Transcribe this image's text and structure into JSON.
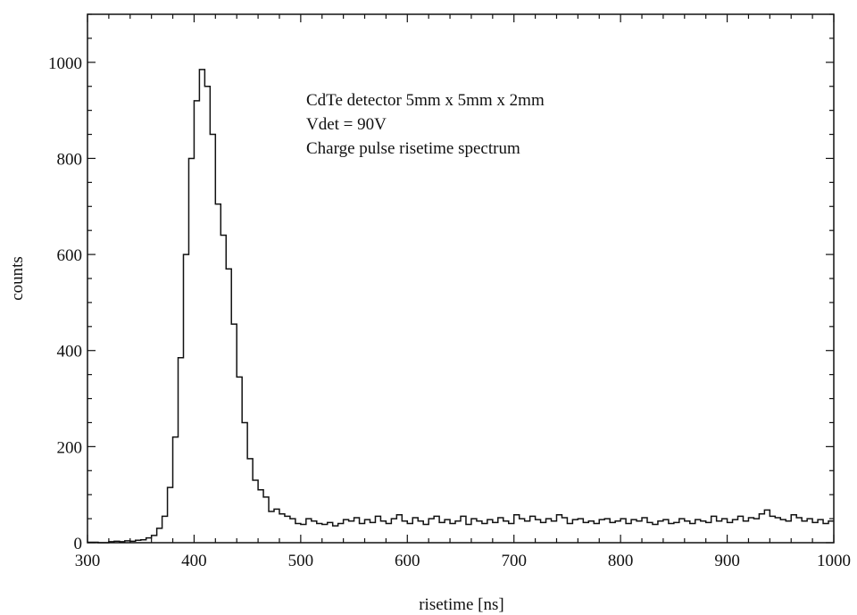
{
  "chart_data": {
    "type": "line",
    "step": true,
    "xlabel": "risetime [ns]",
    "ylabel": "counts",
    "xlim": [
      300,
      1000
    ],
    "ylim": [
      0,
      1100
    ],
    "xticks": [
      300,
      400,
      500,
      600,
      700,
      800,
      900,
      1000
    ],
    "yticks": [
      0,
      200,
      400,
      600,
      800,
      1000
    ],
    "grid": false,
    "annotations": [
      "CdTe detector 5mm x 5mm x 2mm",
      "Vdet = 90V",
      "Charge pulse risetime spectrum"
    ],
    "bin_width": 5,
    "series": [
      {
        "x": [
          300,
          305,
          310,
          315,
          320,
          325,
          330,
          335,
          340,
          345,
          350,
          355,
          360,
          365,
          370,
          375,
          380,
          385,
          390,
          395,
          400,
          405,
          410,
          415,
          420,
          425,
          430,
          435,
          440,
          445,
          450,
          455,
          460,
          465,
          470,
          475,
          480,
          485,
          490,
          495,
          500,
          505,
          510,
          515,
          520,
          525,
          530,
          535,
          540,
          545,
          550,
          555,
          560,
          565,
          570,
          575,
          580,
          585,
          590,
          595,
          600,
          605,
          610,
          615,
          620,
          625,
          630,
          635,
          640,
          645,
          650,
          655,
          660,
          665,
          670,
          675,
          680,
          685,
          690,
          695,
          700,
          705,
          710,
          715,
          720,
          725,
          730,
          735,
          740,
          745,
          750,
          755,
          760,
          765,
          770,
          775,
          780,
          785,
          790,
          795,
          800,
          805,
          810,
          815,
          820,
          825,
          830,
          835,
          840,
          845,
          850,
          855,
          860,
          865,
          870,
          875,
          880,
          885,
          890,
          895,
          900,
          905,
          910,
          915,
          920,
          925,
          930,
          935,
          940,
          945,
          950,
          955,
          960,
          965,
          970,
          975,
          980,
          985,
          990,
          995
        ],
        "values": [
          1,
          1,
          0,
          0,
          2,
          3,
          2,
          4,
          3,
          5,
          6,
          10,
          15,
          30,
          55,
          115,
          220,
          385,
          600,
          800,
          920,
          985,
          950,
          850,
          705,
          640,
          570,
          455,
          345,
          250,
          175,
          130,
          110,
          95,
          65,
          70,
          60,
          55,
          50,
          40,
          38,
          50,
          45,
          40,
          38,
          42,
          35,
          40,
          48,
          45,
          52,
          40,
          48,
          42,
          55,
          45,
          40,
          50,
          58,
          45,
          40,
          52,
          45,
          38,
          50,
          55,
          42,
          48,
          40,
          45,
          55,
          38,
          50,
          45,
          40,
          48,
          42,
          52,
          45,
          40,
          58,
          50,
          45,
          55,
          48,
          42,
          50,
          45,
          58,
          52,
          40,
          48,
          50,
          42,
          45,
          40,
          48,
          50,
          42,
          45,
          50,
          40,
          48,
          45,
          52,
          42,
          38,
          45,
          48,
          40,
          42,
          50,
          45,
          40,
          48,
          45,
          42,
          55,
          45,
          50,
          42,
          48,
          55,
          45,
          52,
          50,
          60,
          68,
          55,
          52,
          48,
          45,
          58,
          52,
          45,
          50,
          42,
          48,
          40,
          45
        ]
      }
    ]
  }
}
